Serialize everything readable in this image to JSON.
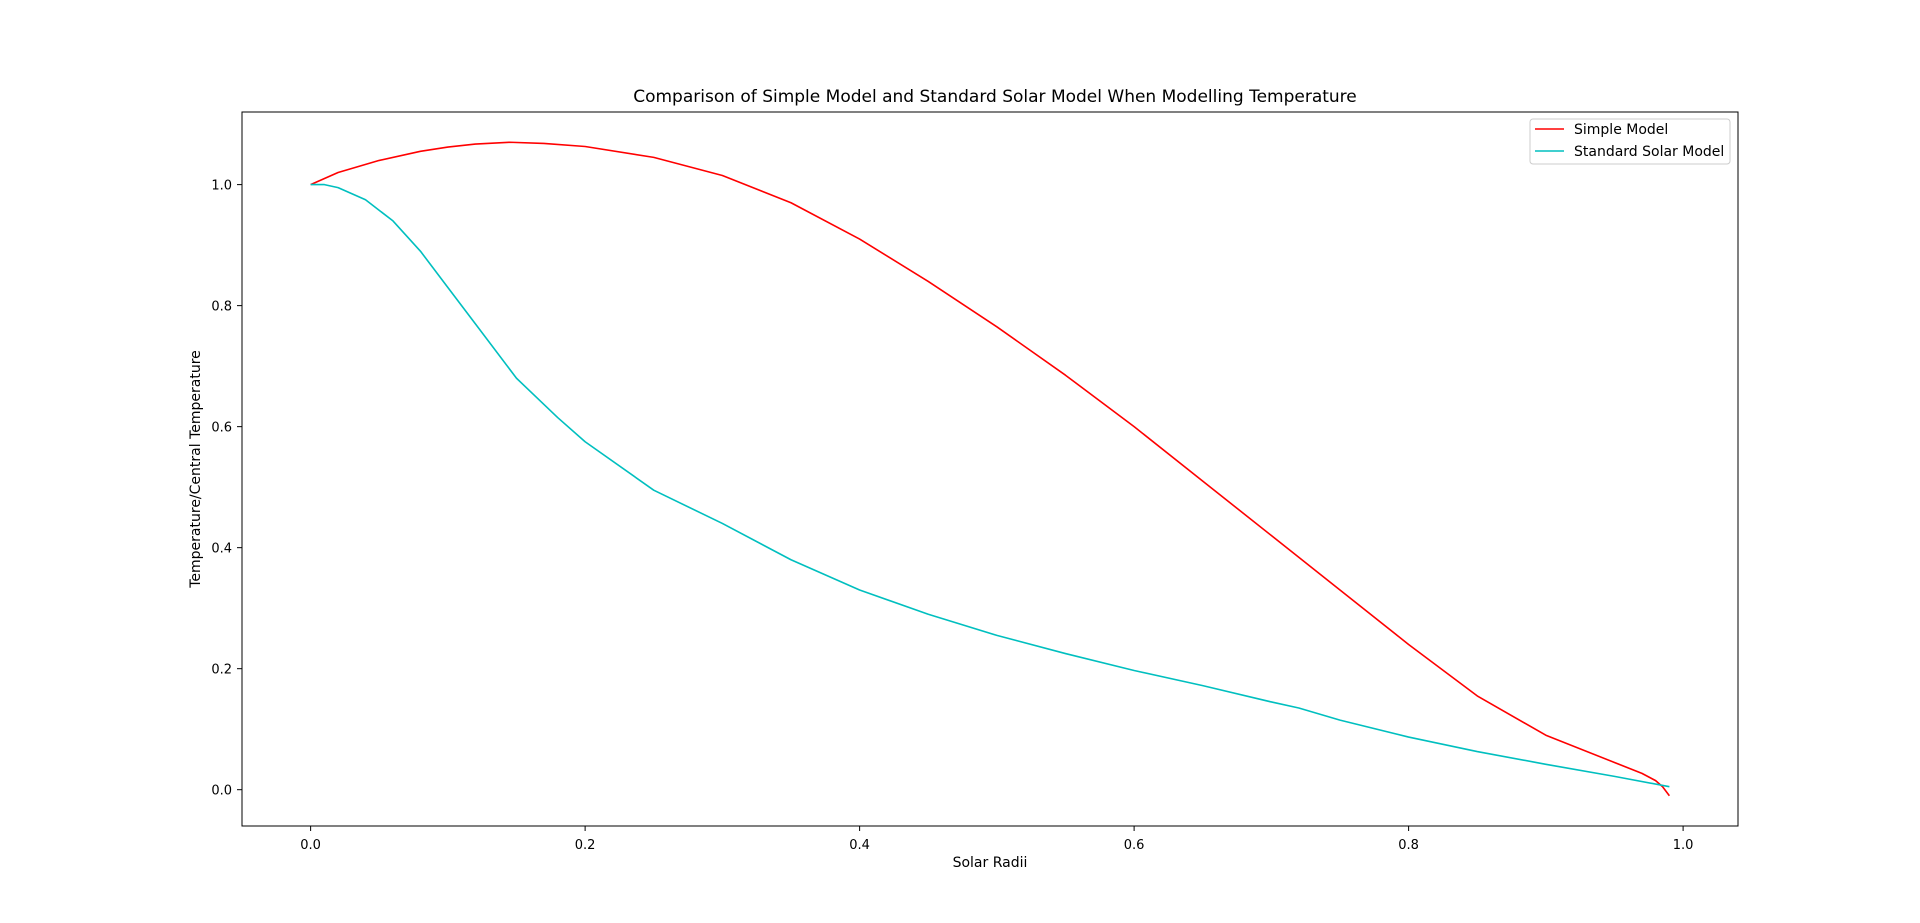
{
  "chart_data": {
    "type": "line",
    "title": "Comparison of Simple Model and Standard Solar Model When Modelling Temperature",
    "xlabel": "Solar Radii",
    "ylabel": "Temperature/Central Temperature",
    "xlim": [
      -0.05,
      1.04
    ],
    "ylim": [
      -0.06,
      1.12
    ],
    "xticks": [
      0.0,
      0.2,
      0.4,
      0.6,
      0.8,
      1.0
    ],
    "xtick_labels": [
      "0.0",
      "0.2",
      "0.4",
      "0.6",
      "0.8",
      "1.0"
    ],
    "yticks": [
      0.0,
      0.2,
      0.4,
      0.6,
      0.8,
      1.0
    ],
    "ytick_labels": [
      "0.0",
      "0.2",
      "0.4",
      "0.6",
      "0.8",
      "1.0"
    ],
    "grid": false,
    "legend_position": "top-right",
    "series": [
      {
        "name": "Simple Model",
        "color": "#ff0000",
        "x": [
          0.0,
          0.02,
          0.05,
          0.08,
          0.1,
          0.12,
          0.145,
          0.17,
          0.2,
          0.25,
          0.3,
          0.35,
          0.4,
          0.45,
          0.5,
          0.55,
          0.6,
          0.65,
          0.7,
          0.75,
          0.8,
          0.85,
          0.9,
          0.95,
          0.97,
          0.98,
          0.985,
          0.99
        ],
        "y": [
          1.0,
          1.02,
          1.04,
          1.055,
          1.062,
          1.067,
          1.07,
          1.068,
          1.063,
          1.045,
          1.015,
          0.97,
          0.91,
          0.84,
          0.765,
          0.685,
          0.6,
          0.51,
          0.42,
          0.33,
          0.24,
          0.155,
          0.09,
          0.045,
          0.027,
          0.015,
          0.005,
          -0.01
        ]
      },
      {
        "name": "Standard Solar Model",
        "color": "#00bfbf",
        "x": [
          0.0,
          0.01,
          0.02,
          0.04,
          0.06,
          0.08,
          0.1,
          0.12,
          0.15,
          0.18,
          0.2,
          0.25,
          0.3,
          0.35,
          0.4,
          0.45,
          0.5,
          0.55,
          0.6,
          0.65,
          0.7,
          0.72,
          0.75,
          0.8,
          0.85,
          0.9,
          0.95,
          0.99
        ],
        "y": [
          1.0,
          1.0,
          0.995,
          0.975,
          0.94,
          0.89,
          0.83,
          0.77,
          0.68,
          0.615,
          0.575,
          0.495,
          0.44,
          0.38,
          0.33,
          0.29,
          0.255,
          0.225,
          0.197,
          0.172,
          0.145,
          0.135,
          0.115,
          0.087,
          0.063,
          0.042,
          0.022,
          0.005
        ]
      }
    ]
  }
}
